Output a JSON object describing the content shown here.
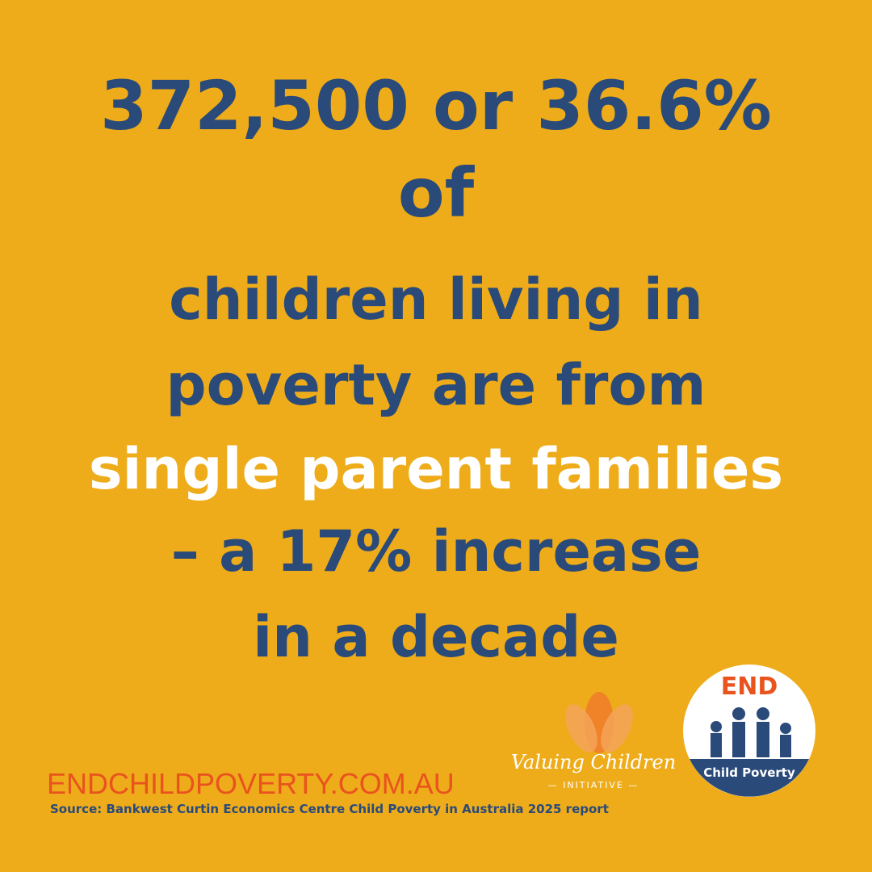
{
  "headline": {
    "line1": "372,500 or 36.6%",
    "line2": "of",
    "line3": "children living in",
    "line4": "poverty are from",
    "line5": "single parent families",
    "line6": "– a 17% increase",
    "line7": "in a decade"
  },
  "footer": {
    "website": "ENDCHILDPOVERTY.COM.AU",
    "source": "Source: Bankwest Curtin Economics Centre Child Poverty in Australia 2025 report"
  },
  "logos": {
    "valuing": {
      "name": "Valuing Children",
      "sub": "— INITIATIVE —"
    },
    "end": {
      "top": "END",
      "bottom": "Child Poverty"
    }
  }
}
